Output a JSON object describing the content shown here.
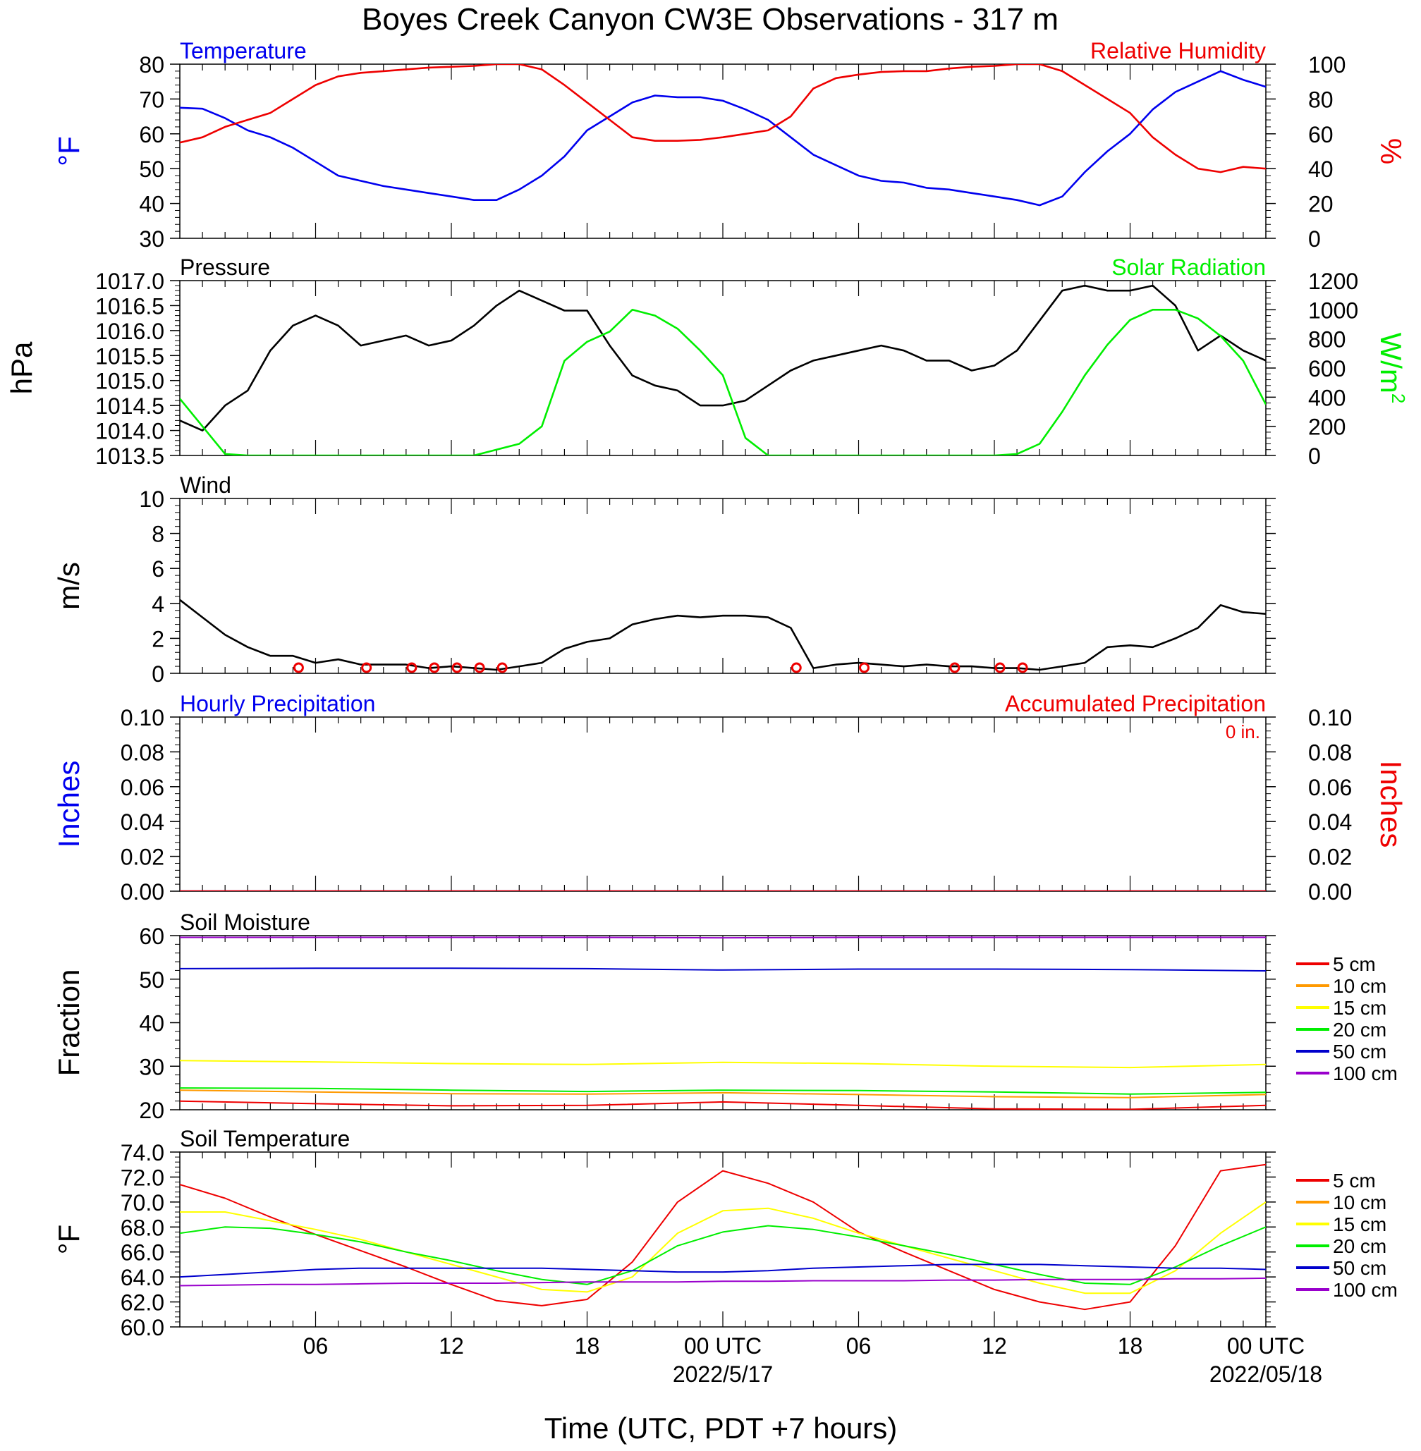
{
  "title": "Boyes Creek Canyon CW3E Observations - 317 m",
  "x_axis": {
    "title": "Time (UTC, PDT +7 hours)",
    "tick_labels": [
      "06",
      "12",
      "18",
      "00 UTC",
      "06",
      "12",
      "18",
      "00 UTC"
    ],
    "date_labels": [
      "2022/5/17",
      "2022/05/18"
    ]
  },
  "chart_data": [
    {
      "type": "line",
      "panel": "temperature-humidity",
      "title_left": "Temperature",
      "title_right": "Relative Humidity",
      "ylabel_left": "°F",
      "ylabel_right": "%",
      "ylim_left": [
        30,
        80
      ],
      "ylim_right": [
        0,
        100
      ],
      "yticks_left": [
        "30",
        "40",
        "50",
        "60",
        "70",
        "80"
      ],
      "yticks_right": [
        "0",
        "20",
        "40",
        "60",
        "80",
        "100"
      ],
      "x_hours": [
        0,
        1,
        2,
        3,
        4,
        5,
        6,
        7,
        8,
        9,
        10,
        11,
        12,
        13,
        14,
        15,
        16,
        17,
        18,
        19,
        20,
        21,
        22,
        23,
        24,
        25,
        26,
        27,
        28,
        29,
        30,
        31,
        32,
        33,
        34,
        35,
        36,
        37,
        38,
        39,
        40,
        41,
        42,
        43,
        44,
        45,
        46,
        47,
        48
      ],
      "series": [
        {
          "name": "Temperature",
          "axis": "left",
          "color": "#0000ee",
          "values": [
            67.5,
            67.2,
            64.5,
            61,
            59,
            56,
            52,
            48,
            46.5,
            45,
            44,
            43,
            42,
            41,
            41,
            44,
            48,
            53.5,
            61,
            65,
            69,
            71,
            70.5,
            70.5,
            69.5,
            67,
            64,
            59,
            54,
            51,
            48,
            46.5,
            46,
            44.5,
            44,
            43,
            42,
            41,
            39.5,
            42,
            49,
            55,
            60,
            67,
            72,
            75,
            78,
            75.5,
            73.5
          ]
        },
        {
          "name": "Relative Humidity",
          "axis": "right",
          "color": "#ee0000",
          "values": [
            55,
            58,
            64,
            68,
            72,
            80,
            88,
            93,
            95,
            96,
            97,
            98,
            98.5,
            99,
            100,
            100,
            97,
            88,
            78,
            68,
            58,
            56,
            56,
            56.5,
            58,
            60,
            62,
            70,
            86,
            92,
            94,
            95.5,
            96,
            96,
            97.5,
            98.5,
            99,
            100,
            100,
            96,
            88,
            80,
            72,
            58,
            48,
            40,
            38,
            41,
            40
          ]
        }
      ]
    },
    {
      "type": "line",
      "panel": "pressure-solar",
      "title_left": "Pressure",
      "title_right": "Solar Radiation",
      "ylabel_left": "hPa",
      "ylabel_right": "W/m",
      "ylabel_right_sup": "2",
      "ylim_left": [
        1013.5,
        1017.0
      ],
      "ylim_right": [
        0,
        1200
      ],
      "yticks_left": [
        "1013.5",
        "1014.0",
        "1014.5",
        "1015.0",
        "1015.5",
        "1016.0",
        "1016.5",
        "1017.0"
      ],
      "yticks_right": [
        "0",
        "200",
        "400",
        "600",
        "800",
        "1000",
        "1200"
      ],
      "x_hours": [
        0,
        1,
        2,
        3,
        4,
        5,
        6,
        7,
        8,
        9,
        10,
        11,
        12,
        13,
        14,
        15,
        16,
        17,
        18,
        19,
        20,
        21,
        22,
        23,
        24,
        25,
        26,
        27,
        28,
        29,
        30,
        31,
        32,
        33,
        34,
        35,
        36,
        37,
        38,
        39,
        40,
        41,
        42,
        43,
        44,
        45,
        46,
        47,
        48
      ],
      "series": [
        {
          "name": "Pressure",
          "axis": "left",
          "color": "#000000",
          "values": [
            1014.2,
            1014.0,
            1014.5,
            1014.8,
            1015.6,
            1016.1,
            1016.3,
            1016.1,
            1015.7,
            1015.8,
            1015.9,
            1015.7,
            1015.8,
            1016.1,
            1016.5,
            1016.8,
            1016.6,
            1016.4,
            1016.4,
            1015.7,
            1015.1,
            1014.9,
            1014.8,
            1014.5,
            1014.5,
            1014.6,
            1014.9,
            1015.2,
            1015.4,
            1015.5,
            1015.6,
            1015.7,
            1015.6,
            1015.4,
            1015.4,
            1015.2,
            1015.3,
            1015.6,
            1016.2,
            1016.8,
            1016.9,
            1016.8,
            1016.8,
            1016.9,
            1016.5,
            1015.6,
            1015.9,
            1015.6,
            1015.4
          ]
        },
        {
          "name": "Solar Radiation",
          "axis": "right",
          "color": "#00ee00",
          "values": [
            390,
            200,
            10,
            0,
            0,
            0,
            0,
            0,
            0,
            0,
            0,
            0,
            0,
            0,
            40,
            80,
            200,
            650,
            780,
            850,
            1000,
            960,
            870,
            720,
            550,
            120,
            0,
            0,
            0,
            0,
            0,
            0,
            0,
            0,
            0,
            0,
            0,
            10,
            80,
            300,
            550,
            760,
            930,
            1000,
            1000,
            940,
            820,
            650,
            350
          ]
        }
      ]
    },
    {
      "type": "line",
      "panel": "wind",
      "title_left": "Wind",
      "ylabel_left": "m/s",
      "ylim_left": [
        0,
        10
      ],
      "yticks_left": [
        "0",
        "2",
        "4",
        "6",
        "8",
        "10"
      ],
      "x_hours": [
        0,
        1,
        2,
        3,
        4,
        5,
        6,
        7,
        8,
        9,
        10,
        11,
        12,
        13,
        14,
        15,
        16,
        17,
        18,
        19,
        20,
        21,
        22,
        23,
        24,
        25,
        26,
        27,
        28,
        29,
        30,
        31,
        32,
        33,
        34,
        35,
        36,
        37,
        38,
        39,
        40,
        41,
        42,
        43,
        44,
        45,
        46,
        47,
        48
      ],
      "series": [
        {
          "name": "Wind speed",
          "axis": "left",
          "color": "#000000",
          "values": [
            4.2,
            3.2,
            2.2,
            1.5,
            1.0,
            1.0,
            0.6,
            0.8,
            0.5,
            0.5,
            0.5,
            0.3,
            0.4,
            0.3,
            0.2,
            0.4,
            0.6,
            1.4,
            1.8,
            2.0,
            2.8,
            3.1,
            3.3,
            3.2,
            3.3,
            3.3,
            3.2,
            2.6,
            0.3,
            0.5,
            0.6,
            0.5,
            0.4,
            0.5,
            0.4,
            0.4,
            0.3,
            0.3,
            0.2,
            0.4,
            0.6,
            1.5,
            1.6,
            1.5,
            2.0,
            2.6,
            3.9,
            3.5,
            3.4
          ]
        }
      ],
      "calm_hours": [
        5,
        8,
        10,
        11,
        12,
        13,
        14,
        27,
        30,
        34,
        36,
        37
      ]
    },
    {
      "type": "line",
      "panel": "precipitation",
      "title_left": "Hourly Precipitation",
      "title_right": "Accumulated Precipitation",
      "annotation": "0 in.",
      "ylabel_left": "Inches",
      "ylabel_right": "Inches",
      "ylim_left": [
        0,
        0.1
      ],
      "ylim_right": [
        0,
        0.1
      ],
      "yticks_left": [
        "0.00",
        "0.02",
        "0.04",
        "0.06",
        "0.08",
        "0.10"
      ],
      "yticks_right": [
        "0.00",
        "0.02",
        "0.04",
        "0.06",
        "0.08",
        "0.10"
      ],
      "x_hours": [
        0,
        48
      ],
      "series": [
        {
          "name": "Hourly Precipitation",
          "axis": "left",
          "color": "#0000ee",
          "values": [
            0,
            0
          ]
        },
        {
          "name": "Accumulated Precipitation",
          "axis": "right",
          "color": "#ee0000",
          "values": [
            0,
            0
          ]
        }
      ]
    },
    {
      "type": "line",
      "panel": "soil-moisture",
      "title_left": "Soil Moisture",
      "ylabel_left": "Fraction",
      "ylim_left": [
        20,
        60
      ],
      "yticks_left": [
        "20",
        "30",
        "40",
        "50",
        "60"
      ],
      "x_hours": [
        0,
        6,
        12,
        18,
        24,
        30,
        36,
        42,
        48
      ],
      "series": [
        {
          "name": "5 cm",
          "color": "#ee0000",
          "values": [
            22.0,
            21.4,
            20.9,
            21.0,
            21.8,
            21.0,
            20.2,
            20.1,
            21.0
          ]
        },
        {
          "name": "10 cm",
          "color": "#ff9900",
          "values": [
            24.5,
            24.1,
            23.7,
            23.6,
            23.9,
            23.5,
            23.0,
            22.8,
            23.5
          ]
        },
        {
          "name": "15 cm",
          "color": "#ffff00",
          "values": [
            31.3,
            31.0,
            30.6,
            30.4,
            30.9,
            30.6,
            30.0,
            29.7,
            30.4
          ]
        },
        {
          "name": "20 cm",
          "color": "#00ee00",
          "values": [
            25.0,
            24.9,
            24.5,
            24.2,
            24.5,
            24.4,
            24.1,
            23.6,
            24.0
          ]
        },
        {
          "name": "50 cm",
          "color": "#0000cc",
          "values": [
            52.4,
            52.5,
            52.5,
            52.4,
            52.1,
            52.3,
            52.3,
            52.2,
            51.9
          ]
        },
        {
          "name": "100 cm",
          "color": "#9900cc",
          "values": [
            59.6,
            59.6,
            59.6,
            59.6,
            59.5,
            59.6,
            59.6,
            59.6,
            59.6
          ]
        }
      ]
    },
    {
      "type": "line",
      "panel": "soil-temperature",
      "title_left": "Soil Temperature",
      "ylabel_left": "°F",
      "ylim_left": [
        60,
        74
      ],
      "yticks_left": [
        "60.0",
        "62.0",
        "64.0",
        "66.0",
        "68.0",
        "70.0",
        "72.0",
        "74.0"
      ],
      "x_hours": [
        0,
        2,
        4,
        6,
        8,
        10,
        12,
        14,
        16,
        18,
        20,
        22,
        24,
        26,
        28,
        30,
        32,
        34,
        36,
        38,
        40,
        42,
        44,
        46,
        48
      ],
      "series": [
        {
          "name": "5 cm",
          "color": "#ee0000",
          "values": [
            71.4,
            70.3,
            68.8,
            67.4,
            66.1,
            64.8,
            63.4,
            62.1,
            61.7,
            62.2,
            65.2,
            70.0,
            72.5,
            71.5,
            70.0,
            67.6,
            66.0,
            64.5,
            63.0,
            62.0,
            61.4,
            62.0,
            66.5,
            72.5,
            73.0
          ]
        },
        {
          "name": "15 cm",
          "color": "#ffff00",
          "values": [
            69.2,
            69.2,
            68.5,
            67.8,
            67.0,
            66.0,
            65.0,
            64.0,
            63.0,
            62.8,
            64.0,
            67.5,
            69.3,
            69.5,
            68.7,
            67.5,
            66.5,
            65.5,
            64.5,
            63.5,
            62.7,
            62.7,
            64.5,
            67.5,
            70.0
          ]
        },
        {
          "name": "20 cm",
          "color": "#00ee00",
          "values": [
            67.5,
            68.0,
            67.9,
            67.4,
            66.8,
            66.0,
            65.3,
            64.5,
            63.8,
            63.4,
            64.5,
            66.5,
            67.6,
            68.1,
            67.8,
            67.2,
            66.5,
            65.8,
            65.0,
            64.2,
            63.5,
            63.4,
            64.8,
            66.5,
            68.0
          ]
        },
        {
          "name": "50 cm",
          "color": "#0000cc",
          "values": [
            64.0,
            64.2,
            64.4,
            64.6,
            64.7,
            64.7,
            64.7,
            64.7,
            64.7,
            64.6,
            64.5,
            64.4,
            64.4,
            64.5,
            64.7,
            64.8,
            64.9,
            65.0,
            65.0,
            65.0,
            64.9,
            64.8,
            64.7,
            64.7,
            64.6
          ]
        },
        {
          "name": "100 cm",
          "color": "#9900cc",
          "values": [
            63.3,
            63.35,
            63.4,
            63.4,
            63.45,
            63.5,
            63.5,
            63.5,
            63.55,
            63.6,
            63.6,
            63.6,
            63.65,
            63.65,
            63.7,
            63.7,
            63.7,
            63.75,
            63.75,
            63.8,
            63.8,
            63.8,
            63.85,
            63.85,
            63.9
          ]
        }
      ]
    }
  ],
  "legend": {
    "labels": [
      "5 cm",
      "10 cm",
      "15 cm",
      "20 cm",
      "50 cm",
      "100 cm"
    ],
    "colors": [
      "#ee0000",
      "#ff9900",
      "#ffff00",
      "#00ee00",
      "#0000cc",
      "#9900cc"
    ]
  }
}
